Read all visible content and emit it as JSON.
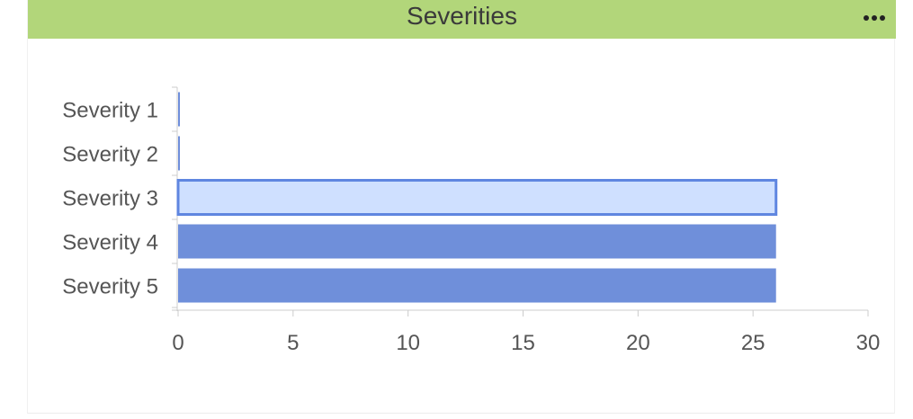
{
  "header": {
    "title": "Severities",
    "menu_icon": "more-horizontal-icon"
  },
  "colors": {
    "header_bg": "#b2d67a",
    "bar_fill": "#6f8fda",
    "bar_fill_highlight": "#cfe0ff",
    "bar_stroke": "#5f86e0",
    "axis": "#cccccc",
    "text": "#555555"
  },
  "chart_data": {
    "type": "bar",
    "orientation": "horizontal",
    "categories": [
      "Severity 1",
      "Severity 2",
      "Severity 3",
      "Severity 4",
      "Severity 5"
    ],
    "values": [
      0,
      0,
      26,
      26,
      26
    ],
    "highlighted_index": 2,
    "xlim": [
      0,
      30
    ],
    "xticks": [
      0,
      5,
      10,
      15,
      20,
      25,
      30
    ],
    "title": "Severities",
    "xlabel": "",
    "ylabel": "",
    "grid": false,
    "legend": "none"
  }
}
